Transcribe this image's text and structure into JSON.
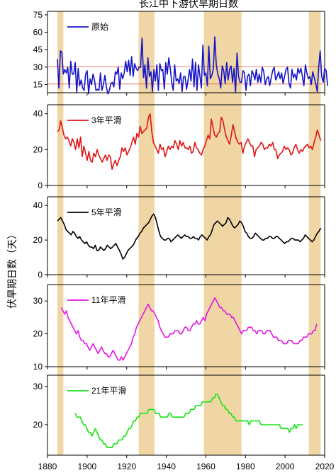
{
  "chart_data": {
    "type": "line",
    "title": "长江中下游伏旱期日数",
    "ylabel": "伏旱期日数（天）",
    "xlim": [
      1880,
      2020
    ],
    "x_ticks": [
      "1880",
      "1900",
      "1920",
      "1940",
      "1960",
      "1980",
      "2000",
      "2020"
    ],
    "shaded_periods": [
      [
        1885,
        1888
      ],
      [
        1926,
        1934
      ],
      [
        1959,
        1978
      ],
      [
        2012,
        2018
      ]
    ],
    "panels": [
      {
        "legend": "原始",
        "color": "#1414c8",
        "ylim": [
          8,
          78
        ],
        "yticks": [
          "15",
          "30",
          "45",
          "60",
          "75"
        ],
        "ref_lines": [
          30.5,
          15.5
        ],
        "ref_color": "#e05a3a",
        "series": {
          "x0": 1885,
          "values": [
            37,
            12,
            44,
            43,
            24,
            28,
            25,
            30,
            12,
            35,
            24,
            24,
            34,
            8,
            29,
            14,
            19,
            12,
            10,
            24,
            27,
            7,
            20,
            15,
            24,
            19,
            10,
            11,
            10,
            25,
            10,
            15,
            23,
            13,
            7,
            10,
            16,
            17,
            13,
            26,
            24,
            30,
            11,
            25,
            20,
            25,
            35,
            26,
            36,
            23,
            39,
            22,
            33,
            29,
            27,
            30,
            30,
            55,
            21,
            32,
            12,
            38,
            22,
            26,
            9,
            28,
            18,
            32,
            10,
            33,
            27,
            28,
            11,
            34,
            24,
            38,
            29,
            17,
            10,
            32,
            18,
            20,
            16,
            25,
            9,
            22,
            22,
            11,
            19,
            28,
            18,
            37,
            13,
            34,
            10,
            32,
            22,
            12,
            49,
            23,
            25,
            14,
            48,
            20,
            23,
            28,
            56,
            32,
            24,
            20,
            12,
            31,
            27,
            16,
            34,
            19,
            28,
            31,
            17,
            29,
            8,
            42,
            22,
            17,
            17,
            27,
            25,
            10,
            22,
            24,
            14,
            27,
            24,
            19,
            28,
            17,
            24,
            17,
            30,
            26,
            15,
            20,
            22,
            14,
            21,
            27,
            30,
            19,
            22,
            26,
            20,
            25,
            16,
            22,
            28,
            30,
            16,
            12,
            28,
            21,
            24,
            19,
            29,
            25,
            29,
            22,
            14,
            32,
            25,
            20,
            22,
            15,
            26,
            21,
            16,
            9,
            30,
            44,
            22,
            17,
            29,
            27,
            14
          ]
        },
        "series_step": 0.75
      },
      {
        "legend": "3年平滑",
        "color": "#e01414",
        "ylim": [
          0,
          45
        ],
        "yticks": [
          "0",
          "20",
          "40"
        ],
        "series": {
          "x0": 1885,
          "x1": 2018,
          "values": [
            30,
            31,
            36,
            32,
            28,
            26,
            27,
            25,
            22,
            26,
            24,
            20,
            26,
            21,
            27,
            16,
            22,
            18,
            14,
            19,
            14,
            13,
            18,
            16,
            20,
            17,
            15,
            13,
            15,
            17,
            14,
            17,
            16,
            9,
            12,
            14,
            11,
            14,
            16,
            21,
            19,
            21,
            17,
            19,
            21,
            24,
            27,
            23,
            29,
            27,
            33,
            29,
            30,
            31,
            32,
            38,
            40,
            30,
            24,
            22,
            20,
            18,
            23,
            20,
            21,
            16,
            19,
            22,
            20,
            22,
            21,
            25,
            23,
            20,
            25,
            22,
            24,
            21,
            21,
            20,
            22,
            18,
            19,
            24,
            21,
            20,
            18,
            17,
            20,
            22,
            25,
            28,
            26,
            37,
            32,
            28,
            27,
            29,
            30,
            38,
            36,
            31,
            27,
            25,
            23,
            28,
            34,
            30,
            26,
            24,
            23,
            24,
            18,
            22,
            24,
            26,
            24,
            22,
            22,
            16,
            20,
            21,
            22,
            24,
            23,
            20,
            21,
            21,
            23,
            22,
            24,
            20,
            20,
            15,
            17,
            18,
            19,
            22,
            20,
            21,
            20,
            17,
            18,
            21,
            23,
            20,
            18,
            20,
            19,
            21,
            22,
            23,
            21,
            22,
            20,
            24,
            27,
            31,
            28,
            25
          ]
        }
      },
      {
        "legend": "5年平滑",
        "color": "#000000",
        "highlight_color": "#5a3a0a",
        "ylim": [
          0,
          45
        ],
        "yticks": [
          "0",
          "20",
          "40"
        ],
        "series": {
          "x0": 1885,
          "x1": 2018,
          "values": [
            31,
            32,
            33,
            31,
            29,
            26,
            25,
            24,
            23,
            25,
            24,
            22,
            21,
            22,
            20,
            19,
            18,
            19,
            17,
            16,
            16,
            15,
            17,
            14,
            14,
            16,
            15,
            14,
            15,
            17,
            16,
            15,
            16,
            17,
            18,
            16,
            14,
            12,
            9,
            10,
            12,
            14,
            15,
            16,
            17,
            19,
            21,
            22,
            24,
            25,
            27,
            28,
            29,
            30,
            32,
            34,
            35,
            33,
            29,
            25,
            22,
            21,
            20,
            20,
            21,
            21,
            19,
            20,
            21,
            22,
            23,
            22,
            21,
            22,
            23,
            22,
            22,
            21,
            21,
            22,
            21,
            21,
            20,
            22,
            23,
            22,
            21,
            20,
            22,
            23,
            26,
            29,
            30,
            31,
            30,
            29,
            28,
            29,
            30,
            33,
            32,
            30,
            28,
            27,
            28,
            29,
            31,
            30,
            28,
            25,
            24,
            22,
            21,
            21,
            22,
            24,
            23,
            22,
            21,
            20,
            20,
            21,
            21,
            22,
            22,
            21,
            21,
            22,
            22,
            21,
            20,
            19,
            18,
            19,
            19,
            20,
            21,
            21,
            20,
            20,
            20,
            19,
            20,
            21,
            23,
            22,
            21,
            20,
            19,
            20,
            22,
            24,
            25,
            27
          ]
        }
      },
      {
        "legend": "11年平滑",
        "color": "#e614e6",
        "ylim": [
          10,
          35
        ],
        "yticks": [
          "10",
          "20",
          "30"
        ],
        "series": {
          "x0": 1887,
          "x1": 2016,
          "values": [
            28,
            27,
            26,
            27,
            25,
            24,
            23,
            22,
            21,
            20,
            21,
            19,
            18,
            18,
            17,
            17,
            16,
            15,
            16,
            17,
            16,
            15,
            14,
            15,
            16,
            15,
            14,
            14,
            13,
            13,
            14,
            15,
            14,
            13,
            12,
            12,
            13,
            12,
            13,
            14,
            15,
            16,
            17,
            19,
            20,
            22,
            23,
            24,
            25,
            26,
            27,
            28,
            29,
            28,
            27,
            27,
            26,
            25,
            24,
            22,
            21,
            20,
            19,
            19,
            19,
            20,
            20,
            20,
            21,
            21,
            21,
            20,
            20,
            21,
            22,
            22,
            21,
            21,
            22,
            23,
            23,
            24,
            23,
            23,
            24,
            25,
            24,
            26,
            27,
            28,
            29,
            30,
            31,
            30,
            29,
            28,
            28,
            27,
            27,
            26,
            26,
            26,
            25,
            25,
            24,
            23,
            22,
            21,
            20,
            21,
            21,
            21,
            22,
            22,
            22,
            21,
            21,
            20,
            21,
            21,
            21,
            20,
            20,
            21,
            21,
            21,
            20,
            19,
            19,
            19,
            18,
            18,
            18,
            17,
            17,
            17,
            18,
            18,
            18,
            17,
            17,
            17,
            17,
            18,
            18,
            19,
            19,
            19,
            20,
            20,
            20,
            21,
            21,
            23
          ]
        }
      },
      {
        "legend": "21年平滑",
        "color": "#14e614",
        "ylim": [
          12,
          33
        ],
        "yticks": [
          "20",
          "30"
        ],
        "series": {
          "x0": 1894,
          "x1": 2009,
          "values": [
            23,
            22,
            22,
            22,
            21,
            20,
            20,
            19,
            18,
            18,
            17,
            18,
            19,
            18,
            17,
            16,
            16,
            15,
            15,
            14,
            14,
            14,
            14,
            15,
            15,
            15,
            16,
            16,
            16,
            17,
            17,
            18,
            19,
            19,
            20,
            21,
            21,
            22,
            22,
            23,
            23,
            23,
            23,
            23,
            24,
            24,
            24,
            24,
            23,
            23,
            23,
            22,
            22,
            22,
            22,
            22,
            23,
            23,
            22,
            22,
            22,
            22,
            22,
            22,
            22,
            22,
            23,
            23,
            23,
            24,
            24,
            24,
            25,
            25,
            25,
            25,
            26,
            26,
            26,
            26,
            26,
            26,
            27,
            27,
            28,
            28,
            27,
            26,
            25,
            25,
            24,
            24,
            23,
            23,
            22,
            22,
            21,
            21,
            21,
            21,
            21,
            21,
            21,
            21,
            20,
            21,
            21,
            21,
            21,
            21,
            21,
            20,
            20,
            20,
            20,
            20,
            20,
            20,
            20,
            20,
            20,
            20,
            20,
            19,
            19,
            19,
            19,
            19,
            18,
            19,
            19,
            20,
            19,
            20,
            20,
            20,
            20
          ]
        }
      }
    ]
  }
}
